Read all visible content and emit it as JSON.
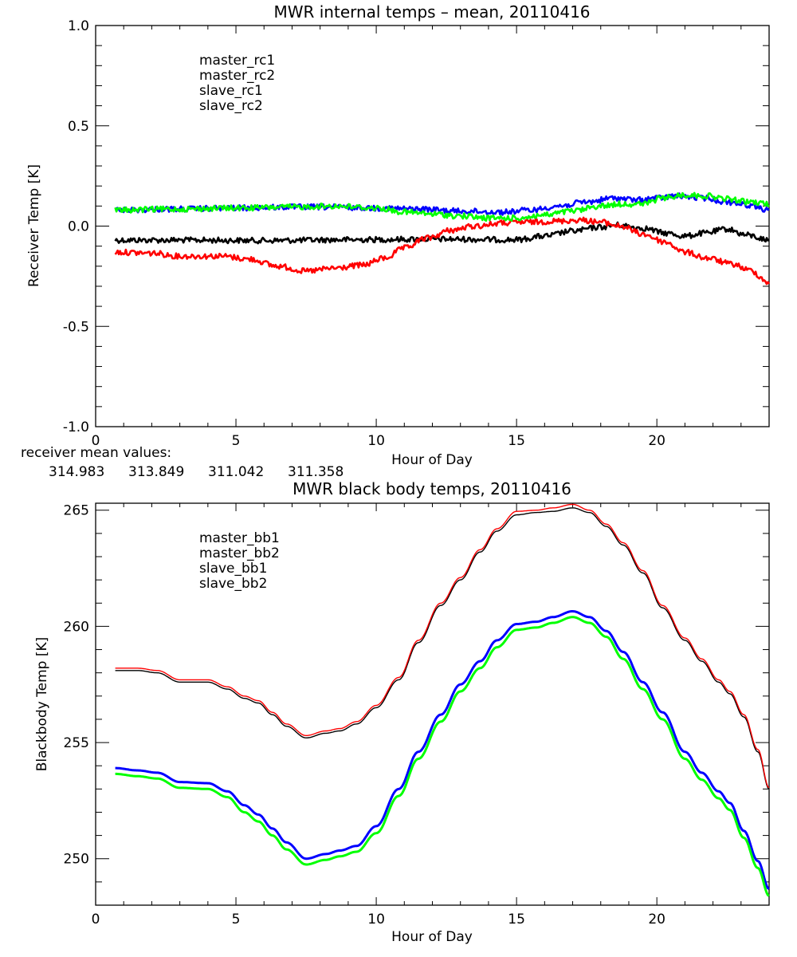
{
  "chart_data": [
    {
      "type": "line",
      "title": "MWR internal temps – mean, 20110416",
      "xlabel": "Hour of Day",
      "ylabel": "Receiver Temp [K]",
      "xlim": [
        0,
        24
      ],
      "ylim": [
        -1.0,
        1.0
      ],
      "x_ticks": [
        "0",
        "5",
        "10",
        "15",
        "20"
      ],
      "x_tick_values": [
        0,
        5,
        10,
        15,
        20
      ],
      "x_minor_step": 1,
      "y_ticks": [
        "1.0",
        "0.5",
        "0.0",
        "-0.5",
        "-1.0"
      ],
      "y_tick_values": [
        1.0,
        0.5,
        0.0,
        -0.5,
        -1.0
      ],
      "y_minor_step": 0.1,
      "grid": false,
      "legend_position": "top-left",
      "series": [
        {
          "name": "master_rc1",
          "color": "#000000",
          "noisy": true,
          "x": [
            0.7,
            3,
            6,
            9,
            12,
            15,
            16,
            17,
            18,
            18.6,
            19.5,
            20.3,
            21,
            21.7,
            22.5,
            23.2,
            24
          ],
          "y": [
            -0.07,
            -0.07,
            -0.072,
            -0.068,
            -0.065,
            -0.068,
            -0.05,
            -0.025,
            -0.005,
            0.005,
            -0.01,
            -0.035,
            -0.05,
            -0.035,
            -0.015,
            -0.045,
            -0.07
          ]
        },
        {
          "name": "master_rc2",
          "color": "#ff0000",
          "noisy": true,
          "x": [
            0.7,
            2,
            3,
            4.5,
            5.5,
            6.5,
            7.5,
            8.5,
            9.5,
            10.3,
            11,
            11.8,
            12.7,
            13.5,
            14.5,
            15.5,
            16.5,
            17.3,
            18,
            18.7,
            19.5,
            20.3,
            21,
            21.8,
            22.7,
            23.3,
            24
          ],
          "y": [
            -0.13,
            -0.135,
            -0.15,
            -0.15,
            -0.165,
            -0.2,
            -0.225,
            -0.21,
            -0.195,
            -0.16,
            -0.11,
            -0.06,
            -0.02,
            0.0,
            0.015,
            0.02,
            0.025,
            0.03,
            0.02,
            0.0,
            -0.04,
            -0.08,
            -0.13,
            -0.16,
            -0.19,
            -0.22,
            -0.28
          ]
        },
        {
          "name": "slave_rc1",
          "color": "#0000ff",
          "noisy": true,
          "x": [
            0.7,
            3,
            5,
            7,
            8.5,
            10,
            11.5,
            13,
            14.5,
            15.5,
            16.5,
            17.5,
            18.5,
            19.3,
            20,
            20.8,
            21.7,
            22.5,
            23.3,
            24
          ],
          "y": [
            0.08,
            0.085,
            0.09,
            0.095,
            0.095,
            0.09,
            0.085,
            0.075,
            0.07,
            0.08,
            0.1,
            0.12,
            0.14,
            0.13,
            0.14,
            0.15,
            0.14,
            0.12,
            0.105,
            0.08
          ]
        },
        {
          "name": "slave_rc2",
          "color": "#00ff00",
          "noisy": true,
          "x": [
            0.7,
            3,
            5,
            7,
            8.5,
            10,
            11,
            12,
            13,
            14,
            15,
            16,
            17,
            18,
            18.7,
            19.5,
            20.2,
            21,
            21.8,
            22.5,
            23.3,
            24
          ],
          "y": [
            0.08,
            0.085,
            0.09,
            0.095,
            0.1,
            0.09,
            0.07,
            0.06,
            0.05,
            0.04,
            0.04,
            0.055,
            0.075,
            0.1,
            0.11,
            0.11,
            0.14,
            0.155,
            0.15,
            0.135,
            0.12,
            0.11
          ]
        }
      ],
      "annotations": {
        "mean_label": "receiver mean values:",
        "mean_values": [
          {
            "text": "314.983",
            "color": "#000000"
          },
          {
            "text": "313.849",
            "color": "#ff0000"
          },
          {
            "text": "311.042",
            "color": "#0000ff"
          },
          {
            "text": "311.358",
            "color": "#00ff00"
          }
        ]
      }
    },
    {
      "type": "line",
      "title": "MWR black body temps, 20110416",
      "xlabel": "Hour of Day",
      "ylabel": "Blackbody Temp [K]",
      "xlim": [
        0,
        24
      ],
      "ylim": [
        248.0,
        265.3
      ],
      "x_ticks": [
        "0",
        "5",
        "10",
        "15",
        "20"
      ],
      "x_tick_values": [
        0,
        5,
        10,
        15,
        20
      ],
      "x_minor_step": 1,
      "y_ticks": [
        "265",
        "260",
        "255",
        "250"
      ],
      "y_tick_values": [
        265,
        260,
        255,
        250
      ],
      "y_minor_step": 1,
      "grid": false,
      "legend_position": "top-left",
      "series": [
        {
          "name": "master_bb1",
          "color": "#000000",
          "x": [
            0.7,
            1.5,
            2.2,
            3,
            4,
            4.7,
            5.3,
            5.8,
            6.3,
            6.8,
            7.5,
            8.2,
            8.7,
            9.3,
            10,
            10.8,
            11.5,
            12.3,
            13,
            13.7,
            14.3,
            15,
            15.7,
            16.3,
            17,
            17.6,
            18.2,
            18.8,
            19.5,
            20.2,
            21,
            21.6,
            22.2,
            22.6,
            23.1,
            23.6,
            24
          ],
          "y": [
            258.1,
            258.1,
            258.0,
            257.6,
            257.6,
            257.3,
            256.9,
            256.7,
            256.2,
            255.7,
            255.2,
            255.4,
            255.5,
            255.8,
            256.5,
            257.7,
            259.3,
            260.9,
            262.0,
            263.2,
            264.1,
            264.8,
            264.9,
            264.95,
            265.1,
            264.9,
            264.3,
            263.5,
            262.3,
            260.8,
            259.4,
            258.5,
            257.6,
            257.1,
            256.1,
            254.6,
            253.0
          ]
        },
        {
          "name": "master_bb2",
          "color": "#ff0000",
          "x": [
            0.7,
            1.5,
            2.2,
            3,
            4,
            4.7,
            5.3,
            5.8,
            6.3,
            6.8,
            7.5,
            8.2,
            8.7,
            9.3,
            10,
            10.8,
            11.5,
            12.3,
            13,
            13.7,
            14.3,
            15,
            15.7,
            16.3,
            17,
            17.6,
            18.2,
            18.8,
            19.5,
            20.2,
            21,
            21.6,
            22.2,
            22.6,
            23.1,
            23.6,
            24
          ],
          "y": [
            258.2,
            258.2,
            258.1,
            257.7,
            257.7,
            257.4,
            257.0,
            256.8,
            256.3,
            255.8,
            255.3,
            255.5,
            255.6,
            255.9,
            256.6,
            257.8,
            259.4,
            261.0,
            262.1,
            263.3,
            264.2,
            264.95,
            265.0,
            265.1,
            265.25,
            265.0,
            264.4,
            263.6,
            262.4,
            260.9,
            259.5,
            258.6,
            257.7,
            257.2,
            256.2,
            254.7,
            253.05
          ]
        },
        {
          "name": "slave_bb1",
          "color": "#0000ff",
          "x": [
            0.7,
            1.5,
            2.2,
            3,
            4,
            4.7,
            5.3,
            5.8,
            6.3,
            6.8,
            7.5,
            8.2,
            8.7,
            9.3,
            10,
            10.8,
            11.5,
            12.3,
            13,
            13.7,
            14.3,
            15,
            15.7,
            16.3,
            17,
            17.6,
            18.2,
            18.8,
            19.5,
            20.2,
            21,
            21.6,
            22.2,
            22.6,
            23.1,
            23.6,
            24
          ],
          "y": [
            253.9,
            253.8,
            253.7,
            253.3,
            253.25,
            252.9,
            252.3,
            251.9,
            251.3,
            250.7,
            250.0,
            250.2,
            250.35,
            250.55,
            251.4,
            253.0,
            254.6,
            256.2,
            257.5,
            258.5,
            259.4,
            260.1,
            260.2,
            260.4,
            260.65,
            260.4,
            259.8,
            258.9,
            257.6,
            256.3,
            254.6,
            253.7,
            252.9,
            252.4,
            251.2,
            249.9,
            248.7
          ]
        },
        {
          "name": "slave_bb2",
          "color": "#00ff00",
          "x": [
            0.7,
            1.5,
            2.2,
            3,
            4,
            4.7,
            5.3,
            5.8,
            6.3,
            6.8,
            7.5,
            8.2,
            8.7,
            9.3,
            10,
            10.8,
            11.5,
            12.3,
            13,
            13.7,
            14.3,
            15,
            15.7,
            16.3,
            17,
            17.6,
            18.2,
            18.8,
            19.5,
            20.2,
            21,
            21.6,
            22.2,
            22.6,
            23.1,
            23.6,
            24
          ],
          "y": [
            253.65,
            253.55,
            253.45,
            253.05,
            253.0,
            252.65,
            252.0,
            251.6,
            251.0,
            250.4,
            249.75,
            249.95,
            250.1,
            250.3,
            251.1,
            252.7,
            254.3,
            255.9,
            257.2,
            258.2,
            259.1,
            259.85,
            259.95,
            260.15,
            260.4,
            260.15,
            259.55,
            258.6,
            257.3,
            256.0,
            254.3,
            253.4,
            252.6,
            252.1,
            250.9,
            249.6,
            248.4
          ]
        }
      ]
    }
  ]
}
